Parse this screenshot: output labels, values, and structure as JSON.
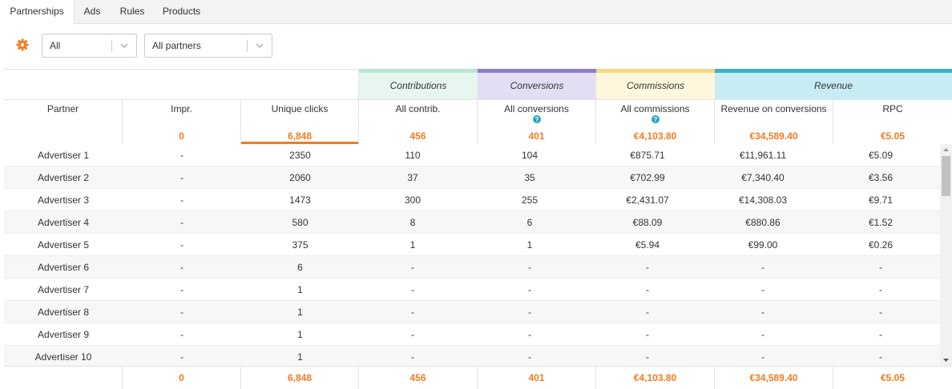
{
  "tabs": [
    {
      "label": "Partnerships",
      "active": true
    },
    {
      "label": "Ads",
      "active": false
    },
    {
      "label": "Rules",
      "active": false
    },
    {
      "label": "Products",
      "active": false
    }
  ],
  "toolbar": {
    "settings_icon": "gear-icon",
    "filter1": {
      "value": "All"
    },
    "filter2": {
      "value": "All partners"
    }
  },
  "groups": [
    {
      "label": "Contributions",
      "color": "#b9e4d3",
      "bg": "#e8f6f0"
    },
    {
      "label": "Conversions",
      "color": "#8f7fc9",
      "bg": "#e3def3"
    },
    {
      "label": "Commissions",
      "color": "#f9d981",
      "bg": "#fef7dd"
    },
    {
      "label": "Revenue",
      "color": "#3bb0c4",
      "bg": "#c8ecf3"
    }
  ],
  "columns": [
    {
      "label": "Partner",
      "total": ""
    },
    {
      "label": "Impr.",
      "total": "0"
    },
    {
      "label": "Unique clicks",
      "total": "6,848",
      "sorted": true
    },
    {
      "label": "All contrib.",
      "total": "456"
    },
    {
      "label": "All conversions",
      "total": "401",
      "help": true
    },
    {
      "label": "All commissions",
      "total": "€4,103.80",
      "help": true
    },
    {
      "label": "Revenue on conversions",
      "total": "€34,589.40"
    },
    {
      "label": "RPC",
      "total": "€5.05"
    }
  ],
  "rows": [
    [
      "Advertiser 1",
      "-",
      "2350",
      "110",
      "104",
      "€875.71",
      "€11,961.11",
      "€5.09"
    ],
    [
      "Advertiser 2",
      "-",
      "2060",
      "37",
      "35",
      "€702.99",
      "€7,340.40",
      "€3.56"
    ],
    [
      "Advertiser 3",
      "-",
      "1473",
      "300",
      "255",
      "€2,431.07",
      "€14,308.03",
      "€9.71"
    ],
    [
      "Advertiser 4",
      "-",
      "580",
      "8",
      "6",
      "€88.09",
      "€880.86",
      "€1.52"
    ],
    [
      "Advertiser 5",
      "-",
      "375",
      "1",
      "1",
      "€5.94",
      "€99.00",
      "€0.26"
    ],
    [
      "Advertiser 6",
      "-",
      "6",
      "-",
      "-",
      "-",
      "-",
      "-"
    ],
    [
      "Advertiser 7",
      "-",
      "1",
      "-",
      "-",
      "-",
      "-",
      "-"
    ],
    [
      "Advertiser 8",
      "-",
      "1",
      "-",
      "-",
      "-",
      "-",
      "-"
    ],
    [
      "Advertiser 9",
      "-",
      "1",
      "-",
      "-",
      "-",
      "-",
      "-"
    ],
    [
      "Advertiser 10",
      "-",
      "1",
      "-",
      "-",
      "-",
      "-",
      "-"
    ]
  ],
  "footer": [
    "",
    "0",
    "6,848",
    "456",
    "401",
    "€4,103.80",
    "€34,589.40",
    "€5.05"
  ],
  "accent": "#f47b20",
  "help_color": "#1ea7c5"
}
